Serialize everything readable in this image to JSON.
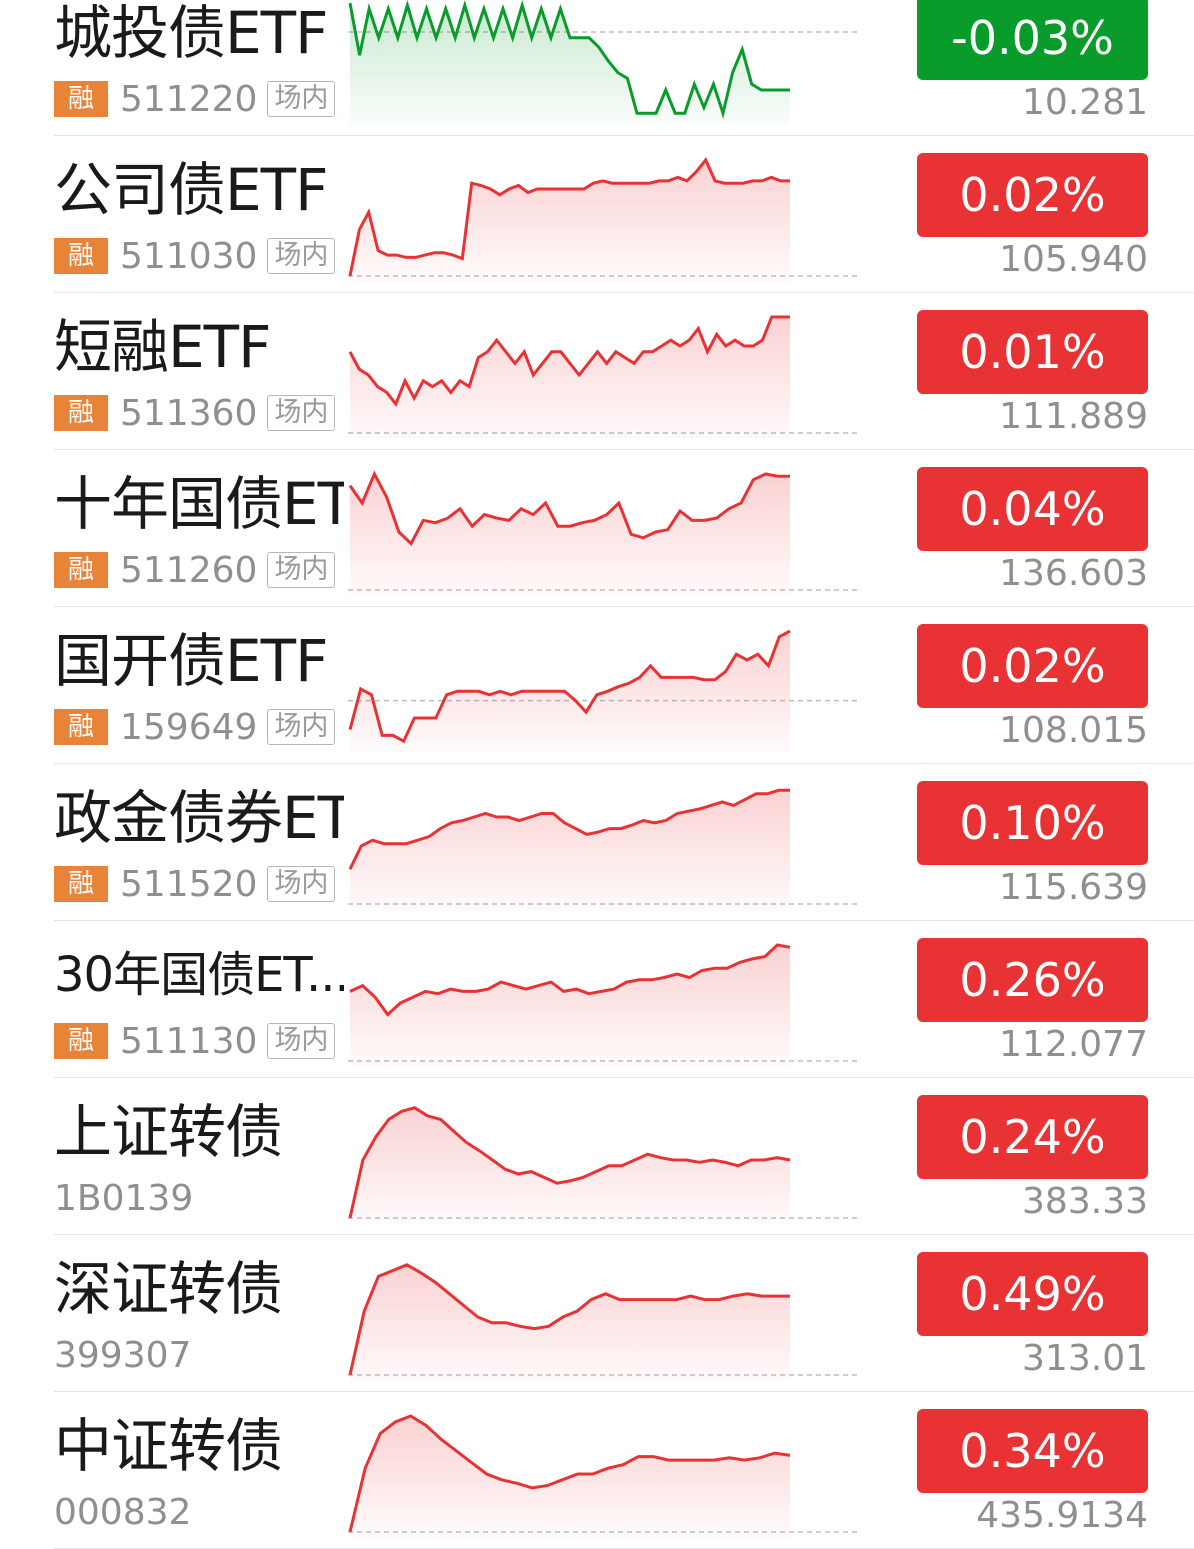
{
  "colors": {
    "up": "#e93234",
    "down": "#0a9c2b",
    "badge_rong": "#e8833a"
  },
  "items": [
    {
      "name": "城投债ETF",
      "badge": "融",
      "code": "511220",
      "market": "场内",
      "change": "-0.03%",
      "price": "10.281",
      "trend": "down",
      "ref": 0.25,
      "points": [
        0.0,
        0.45,
        0.05,
        0.3,
        0.05,
        0.3,
        0.02,
        0.3,
        0.05,
        0.3,
        0.05,
        0.3,
        0.02,
        0.3,
        0.05,
        0.3,
        0.05,
        0.3,
        0.02,
        0.3,
        0.05,
        0.3,
        0.05,
        0.3,
        0.3,
        0.3,
        0.38,
        0.5,
        0.6,
        0.65,
        0.95,
        0.95,
        0.95,
        0.75,
        0.95,
        0.95,
        0.7,
        0.9,
        0.7,
        0.95,
        0.6,
        0.4,
        0.7,
        0.75,
        0.75,
        0.75,
        0.75
      ]
    },
    {
      "name": "公司债ETF",
      "badge": "融",
      "code": "511030",
      "market": "场内",
      "change": "0.02%",
      "price": "105.940",
      "trend": "up",
      "ref": 1.0,
      "points": [
        1.0,
        0.6,
        0.45,
        0.78,
        0.82,
        0.82,
        0.84,
        0.84,
        0.82,
        0.8,
        0.8,
        0.82,
        0.85,
        0.2,
        0.22,
        0.25,
        0.3,
        0.25,
        0.22,
        0.28,
        0.25,
        0.25,
        0.25,
        0.25,
        0.25,
        0.25,
        0.2,
        0.18,
        0.2,
        0.2,
        0.2,
        0.2,
        0.2,
        0.18,
        0.18,
        0.15,
        0.18,
        0.1,
        0.0,
        0.18,
        0.2,
        0.2,
        0.2,
        0.18,
        0.18,
        0.15,
        0.18,
        0.18
      ]
    },
    {
      "name": "短融ETF",
      "badge": "融",
      "code": "511360",
      "market": "场内",
      "change": "0.01%",
      "price": "111.889",
      "trend": "up",
      "ref": 1.0,
      "points": [
        0.3,
        0.45,
        0.5,
        0.6,
        0.65,
        0.75,
        0.55,
        0.7,
        0.55,
        0.6,
        0.55,
        0.65,
        0.55,
        0.6,
        0.35,
        0.3,
        0.2,
        0.3,
        0.4,
        0.3,
        0.5,
        0.4,
        0.3,
        0.3,
        0.4,
        0.5,
        0.4,
        0.3,
        0.4,
        0.3,
        0.35,
        0.4,
        0.3,
        0.3,
        0.25,
        0.2,
        0.25,
        0.2,
        0.1,
        0.3,
        0.15,
        0.25,
        0.2,
        0.25,
        0.25,
        0.2,
        0.0,
        0.0,
        0.0
      ]
    },
    {
      "name": "十年国债ETF",
      "badge": "融",
      "code": "511260",
      "market": "场内",
      "change": "0.04%",
      "price": "136.603",
      "trend": "up",
      "ref": 1.0,
      "points": [
        0.1,
        0.25,
        0.0,
        0.2,
        0.5,
        0.6,
        0.4,
        0.42,
        0.38,
        0.3,
        0.45,
        0.35,
        0.38,
        0.4,
        0.3,
        0.35,
        0.25,
        0.45,
        0.45,
        0.42,
        0.4,
        0.35,
        0.25,
        0.52,
        0.55,
        0.5,
        0.48,
        0.32,
        0.4,
        0.4,
        0.38,
        0.3,
        0.25,
        0.05,
        0.0,
        0.02,
        0.02
      ]
    },
    {
      "name": "国开债ETF",
      "badge": "融",
      "code": "159649",
      "market": "场内",
      "change": "0.02%",
      "price": "108.015",
      "trend": "up",
      "ref": 0.6,
      "points": [
        0.85,
        0.5,
        0.55,
        0.9,
        0.9,
        0.95,
        0.75,
        0.75,
        0.75,
        0.55,
        0.52,
        0.52,
        0.52,
        0.55,
        0.52,
        0.55,
        0.52,
        0.52,
        0.52,
        0.52,
        0.52,
        0.6,
        0.7,
        0.55,
        0.52,
        0.48,
        0.45,
        0.4,
        0.3,
        0.4,
        0.4,
        0.4,
        0.4,
        0.42,
        0.42,
        0.35,
        0.2,
        0.25,
        0.2,
        0.3,
        0.05,
        0.0
      ]
    },
    {
      "name": "政金债券ETF",
      "badge": "融",
      "code": "511520",
      "market": "场内",
      "change": "0.10%",
      "price": "115.639",
      "trend": "up",
      "ref": 1.0,
      "points": [
        0.7,
        0.5,
        0.45,
        0.48,
        0.48,
        0.48,
        0.45,
        0.42,
        0.35,
        0.3,
        0.28,
        0.25,
        0.22,
        0.25,
        0.25,
        0.28,
        0.25,
        0.22,
        0.22,
        0.3,
        0.35,
        0.4,
        0.38,
        0.35,
        0.35,
        0.32,
        0.28,
        0.3,
        0.28,
        0.22,
        0.2,
        0.18,
        0.15,
        0.12,
        0.15,
        0.1,
        0.05,
        0.05,
        0.02,
        0.02
      ]
    },
    {
      "name": "30年国债ET...",
      "small": true,
      "badge": "融",
      "code": "511130",
      "market": "场内",
      "change": "0.26%",
      "price": "112.077",
      "trend": "up",
      "ref": 1.0,
      "points": [
        0.4,
        0.35,
        0.45,
        0.6,
        0.5,
        0.45,
        0.4,
        0.42,
        0.38,
        0.4,
        0.4,
        0.38,
        0.32,
        0.35,
        0.38,
        0.35,
        0.32,
        0.4,
        0.38,
        0.42,
        0.4,
        0.38,
        0.32,
        0.3,
        0.3,
        0.28,
        0.25,
        0.28,
        0.22,
        0.2,
        0.2,
        0.15,
        0.12,
        0.1,
        0.0,
        0.02
      ]
    },
    {
      "name": "上证转债",
      "badge": "",
      "code": "1B0139",
      "market": "",
      "change": "0.24%",
      "price": "383.33",
      "trend": "up",
      "ref": 1.0,
      "points": [
        1.0,
        0.5,
        0.3,
        0.15,
        0.08,
        0.05,
        0.12,
        0.15,
        0.25,
        0.35,
        0.42,
        0.5,
        0.58,
        0.62,
        0.6,
        0.65,
        0.7,
        0.68,
        0.65,
        0.6,
        0.55,
        0.55,
        0.5,
        0.45,
        0.48,
        0.5,
        0.5,
        0.52,
        0.5,
        0.52,
        0.55,
        0.5,
        0.5,
        0.48,
        0.5
      ]
    },
    {
      "name": "深证转债",
      "badge": "",
      "code": "399307",
      "market": "",
      "change": "0.49%",
      "price": "313.01",
      "trend": "up",
      "ref": 1.0,
      "points": [
        1.0,
        0.45,
        0.15,
        0.1,
        0.05,
        0.12,
        0.2,
        0.3,
        0.4,
        0.5,
        0.55,
        0.55,
        0.58,
        0.6,
        0.58,
        0.5,
        0.45,
        0.35,
        0.3,
        0.35,
        0.35,
        0.35,
        0.35,
        0.35,
        0.32,
        0.35,
        0.35,
        0.32,
        0.3,
        0.32,
        0.32,
        0.32
      ]
    },
    {
      "name": "中证转债",
      "badge": "",
      "code": "000832",
      "market": "",
      "change": "0.34%",
      "price": "435.9134",
      "trend": "up",
      "ref": 1.0,
      "points": [
        1.0,
        0.45,
        0.15,
        0.05,
        0.0,
        0.08,
        0.2,
        0.3,
        0.4,
        0.5,
        0.55,
        0.58,
        0.62,
        0.6,
        0.55,
        0.5,
        0.5,
        0.45,
        0.42,
        0.35,
        0.35,
        0.38,
        0.38,
        0.38,
        0.38,
        0.36,
        0.38,
        0.36,
        0.32,
        0.34
      ]
    }
  ]
}
